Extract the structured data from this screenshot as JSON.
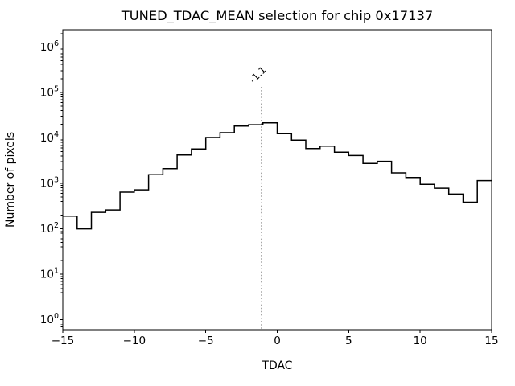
{
  "chart_data": {
    "type": "bar",
    "subtype": "step-histogram",
    "title": "TUNED_TDAC_MEAN selection for chip 0x17137",
    "xlabel": "TDAC",
    "ylabel": "Number of pixels",
    "yscale": "log",
    "grid": false,
    "legend": null,
    "bin_start": -15,
    "bin_width": 1,
    "counts": [
      190,
      100,
      230,
      260,
      640,
      720,
      1550,
      2100,
      4200,
      5700,
      10200,
      13000,
      18200,
      19500,
      21500,
      12400,
      8900,
      5800,
      6600,
      4850,
      4100,
      2750,
      3050,
      1700,
      1350,
      950,
      780,
      580,
      385,
      1150
    ],
    "xlim": [
      -15,
      15
    ],
    "ylim_log10": [
      -0.217,
      6.377
    ],
    "x_ticks": [
      -15,
      -10,
      -5,
      0,
      5,
      10,
      15
    ],
    "x_tick_labels": [
      "−15",
      "−10",
      "−5",
      "0",
      "5",
      "10",
      "15"
    ],
    "y_tick_exponents": [
      0,
      1,
      2,
      3,
      4,
      5,
      6
    ],
    "vline": {
      "x": -1.1,
      "label": "-1.1",
      "style": "dotted",
      "color": "#7f7f7f"
    },
    "line_color": "#000000",
    "background": "#ffffff"
  }
}
